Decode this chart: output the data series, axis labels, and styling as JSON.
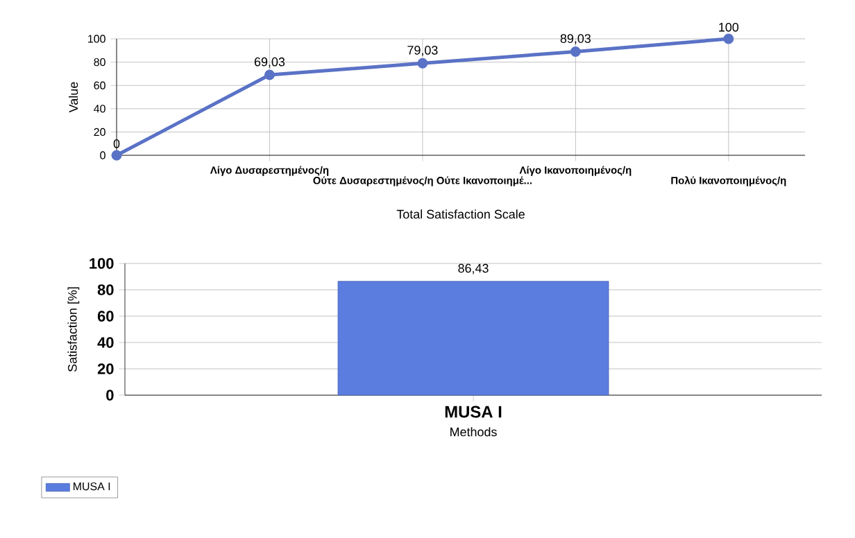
{
  "chart_data": [
    {
      "type": "line",
      "categories": [
        null,
        "Λίγο Δυσαρεστημένος/η",
        "Ούτε Δυσαρεστημένος/η Ούτε Ικανοποιημέ...",
        "Λίγο Ικανοποιημένος/η",
        "Πολύ Ικανοποιημένος/η"
      ],
      "values": [
        0,
        69.03,
        79.03,
        89.03,
        100
      ],
      "value_labels": [
        "0",
        "69,03",
        "79,03",
        "89,03",
        "100"
      ],
      "color": "#5a72c6",
      "xlabel": "Total Satisfaction Scale",
      "ylabel": "Value",
      "ylim": [
        0,
        100
      ],
      "yticks": [
        0,
        20,
        40,
        60,
        80,
        100
      ],
      "grid": true,
      "marker": "circle"
    },
    {
      "type": "bar",
      "categories": [
        "MUSA I"
      ],
      "series": [
        {
          "name": "MUSA I",
          "color": "#5b7de0",
          "values": [
            86.43
          ],
          "value_labels": [
            "86,43"
          ]
        }
      ],
      "xlabel": "Methods",
      "ylabel": "Satisfaction [%]",
      "ylim": [
        0,
        100
      ],
      "yticks": [
        0,
        20,
        40,
        60,
        80,
        100
      ],
      "grid": "y",
      "legend": "bottom left"
    }
  ]
}
